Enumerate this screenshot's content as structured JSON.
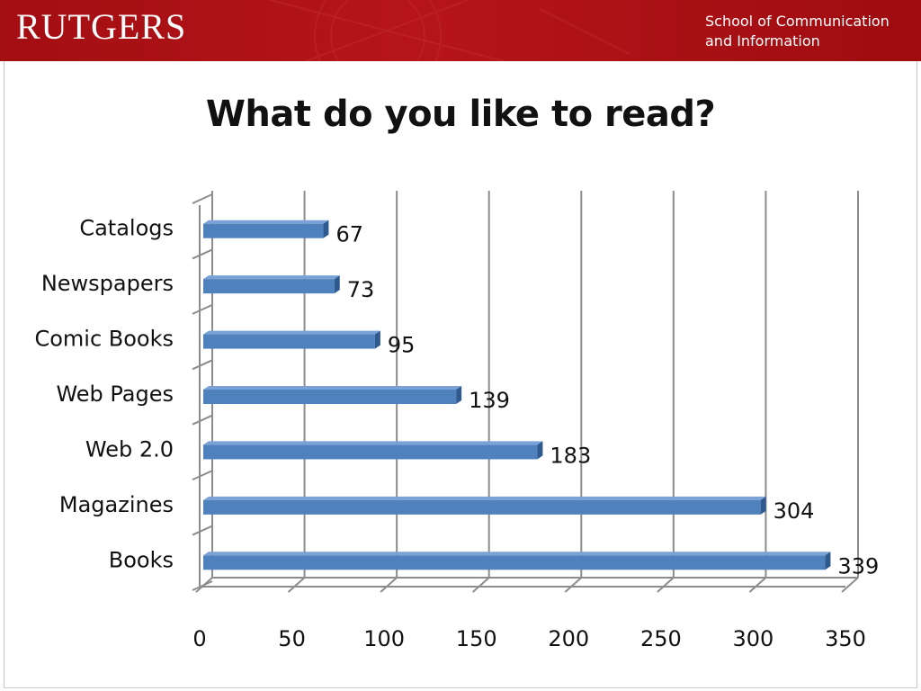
{
  "header": {
    "logo_text": "RUTGERS",
    "school_line1": "School of Communication",
    "school_line2": "and Information",
    "banner_color": "#a50f14"
  },
  "chart_data": {
    "type": "bar",
    "orientation": "horizontal",
    "title": "What do you like to read?",
    "categories": [
      "Catalogs",
      "Newspapers",
      "Comic Books",
      "Web Pages",
      "Web 2.0",
      "Magazines",
      "Books"
    ],
    "values": [
      67,
      73,
      95,
      139,
      183,
      304,
      339
    ],
    "data_labels": [
      "67",
      "73",
      "95",
      "139",
      "183",
      "304",
      "339"
    ],
    "xlim": [
      0,
      350
    ],
    "x_ticks": [
      "0",
      "50",
      "100",
      "150",
      "200",
      "250",
      "300",
      "350"
    ],
    "xlabel": "",
    "ylabel": "",
    "grid": true,
    "legend": "none",
    "bar_color": "#4f81bd"
  }
}
